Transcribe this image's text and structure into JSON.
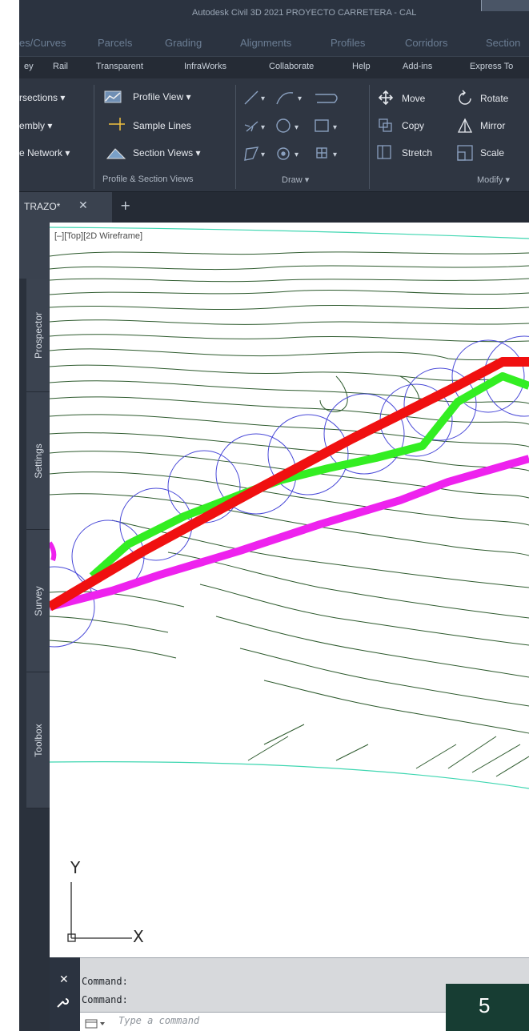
{
  "title_bar": {
    "text": "Autodesk Civil 3D 2021   PROYECTO CARRETERA - CAL"
  },
  "ribbon_tabs": [
    "es/Curves",
    "Parcels",
    "Grading",
    "Alignments",
    "Profiles",
    "Corridors",
    "Section"
  ],
  "menu_tabs": [
    "ey",
    "Rail",
    "Transparent",
    "InfraWorks",
    "Collaborate",
    "Help",
    "Add-ins",
    "Express To"
  ],
  "ribbon": {
    "create": {
      "items": [
        "rsections",
        "embly",
        "e Network"
      ]
    },
    "profile_section": {
      "items": [
        "Profile View",
        "Sample Lines",
        "Section Views"
      ],
      "title": "Profile & Section Views"
    },
    "draw": {
      "title": "Draw"
    },
    "modify": {
      "items": [
        "Move",
        "Copy",
        "Stretch",
        "Rotate",
        "Mirror",
        "Scale"
      ],
      "title": "Modify"
    }
  },
  "document_tab": {
    "label": "TRAZO*",
    "close": "✕",
    "add": "+"
  },
  "toolspace": {
    "tabs": [
      "Prospector",
      "Settings",
      "Survey",
      "Toolbox"
    ]
  },
  "viewport": {
    "label": "[–][Top][2D Wireframe]",
    "ucs": {
      "x_label": "X",
      "y_label": "Y"
    },
    "colors": {
      "red_alignment": "#f01010",
      "green_polyline": "#33ee22",
      "magenta_polyline": "#ee22ee",
      "circles": "#4a4ad8",
      "contours": "#2d5a2d",
      "boundary": "#3dd6b0"
    }
  },
  "command": {
    "history": [
      "Command:",
      "Command:"
    ],
    "placeholder": "Type a command"
  },
  "page_badge": {
    "number": "5"
  }
}
